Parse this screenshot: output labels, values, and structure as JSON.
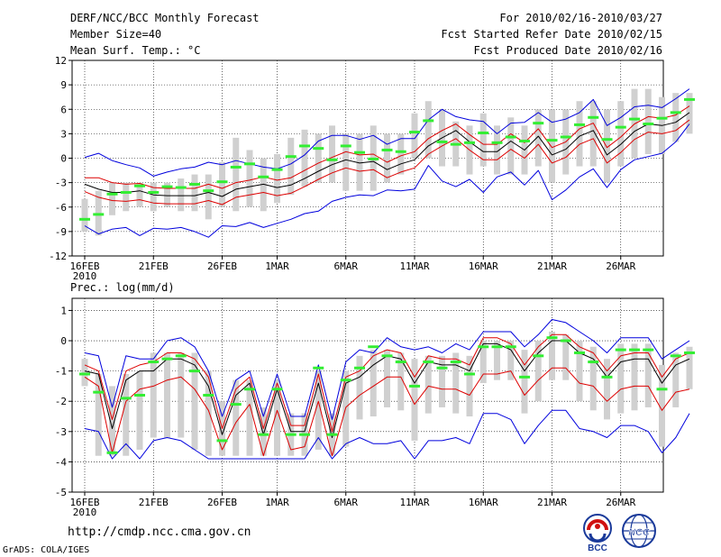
{
  "header": {
    "title": "DERF/NCC/BCC Monthly Forecast",
    "member_size": "Member Size=40",
    "variable": "Mean Surf. Temp.: °C",
    "period": "For 2010/02/16-2010/03/27",
    "refer_date": "Fcst Started Refer Date 2010/02/15",
    "produced_date": "Fcst Produced Date 2010/02/16"
  },
  "footer": {
    "url": "http://cmdp.ncc.cma.gov.cn",
    "grads_credit": "GrADS: COLA/IGES",
    "logo_bcc": "BCC",
    "logo_ncc": "NCC"
  },
  "chart_data": [
    {
      "type": "line",
      "title": "Mean Surf. Temp.: °C",
      "x_tick_labels": [
        "16FEB",
        "21FEB",
        "26FEB",
        "1MAR",
        "6MAR",
        "11MAR",
        "16MAR",
        "21MAR",
        "26MAR"
      ],
      "x_tick_days": [
        0,
        5,
        10,
        14,
        19,
        24,
        29,
        34,
        39
      ],
      "x_year_label": "2010",
      "y_ticks": [
        12,
        9,
        6,
        3,
        0,
        -3,
        -6,
        -9,
        -12
      ],
      "ylim": [
        -12,
        12
      ],
      "grid": true,
      "series": [
        {
          "name": "ensemble mean",
          "color": "#000000",
          "values": [
            -3.2,
            -3.8,
            -4.2,
            -4.2,
            -4.0,
            -4.5,
            -4.6,
            -4.6,
            -4.6,
            -4.2,
            -4.7,
            -3.8,
            -3.5,
            -3.2,
            -3.6,
            -3.3,
            -2.5,
            -1.6,
            -0.8,
            -0.2,
            -0.6,
            -0.4,
            -1.4,
            -0.7,
            -0.2,
            1.5,
            2.5,
            3.4,
            2.0,
            0.8,
            0.8,
            2.1,
            1.0,
            2.7,
            0.4,
            1.1,
            2.7,
            3.4,
            0.4,
            1.7,
            3.3,
            4.2,
            4.0,
            4.4,
            5.6
          ]
        },
        {
          "name": "upper red",
          "color": "#dd0000",
          "values": [
            -2.4,
            -2.4,
            -3.0,
            -3.2,
            -3.1,
            -3.6,
            -3.7,
            -3.7,
            -3.7,
            -3.2,
            -3.7,
            -3.0,
            -2.7,
            -2.3,
            -2.7,
            -2.4,
            -1.5,
            -0.6,
            0.1,
            0.8,
            0.4,
            0.5,
            -0.5,
            0.3,
            0.8,
            2.4,
            3.4,
            4.2,
            2.9,
            1.7,
            1.7,
            3.0,
            1.9,
            3.6,
            1.3,
            2.0,
            3.6,
            4.3,
            1.3,
            2.6,
            4.2,
            5.1,
            4.9,
            5.3,
            6.4
          ]
        },
        {
          "name": "lower red",
          "color": "#dd0000",
          "values": [
            -4.1,
            -4.8,
            -5.2,
            -5.3,
            -5.1,
            -5.5,
            -5.6,
            -5.6,
            -5.6,
            -5.2,
            -5.7,
            -4.8,
            -4.5,
            -4.2,
            -4.6,
            -4.3,
            -3.5,
            -2.6,
            -1.8,
            -1.2,
            -1.6,
            -1.4,
            -2.4,
            -1.7,
            -1.2,
            0.5,
            1.5,
            2.4,
            1.0,
            -0.2,
            -0.2,
            1.1,
            0.0,
            1.7,
            -0.6,
            0.1,
            1.7,
            2.4,
            -0.6,
            0.7,
            2.3,
            3.2,
            3.0,
            3.4,
            4.7
          ]
        },
        {
          "name": "upper blue",
          "color": "#0000dd",
          "values": [
            0.1,
            0.6,
            -0.3,
            -0.8,
            -1.2,
            -2.2,
            -1.7,
            -1.3,
            -1.1,
            -0.5,
            -0.8,
            -0.3,
            -0.7,
            -1.1,
            -1.3,
            -0.7,
            0.4,
            2.1,
            2.8,
            2.8,
            2.3,
            2.8,
            1.7,
            2.4,
            2.4,
            4.7,
            6.0,
            5.1,
            4.7,
            4.5,
            3.0,
            4.3,
            4.4,
            5.6,
            4.4,
            4.8,
            5.6,
            7.2,
            4.0,
            5.0,
            6.3,
            6.5,
            6.2,
            7.3,
            8.5
          ]
        },
        {
          "name": "lower blue",
          "color": "#0000dd",
          "values": [
            -8.3,
            -9.3,
            -8.7,
            -8.5,
            -9.5,
            -8.6,
            -8.7,
            -8.5,
            -9.0,
            -9.7,
            -8.3,
            -8.4,
            -7.9,
            -8.5,
            -8.0,
            -7.5,
            -6.8,
            -6.5,
            -5.3,
            -4.8,
            -4.5,
            -4.6,
            -3.9,
            -4.0,
            -3.8,
            -0.9,
            -2.8,
            -3.5,
            -2.6,
            -4.2,
            -2.3,
            -1.7,
            -3.3,
            -1.5,
            -5.1,
            -3.9,
            -2.3,
            -1.3,
            -3.6,
            -1.4,
            -0.2,
            0.2,
            0.6,
            2.0,
            4.2
          ]
        },
        {
          "name": "green member marks",
          "color": "#33ee33",
          "values": [
            -7.5,
            -6.9,
            -4.4,
            -4.2,
            -3.4,
            -4.2,
            -3.5,
            -3.6,
            -3.2,
            -4.0,
            -2.9,
            -1.1,
            -0.7,
            -2.3,
            -1.4,
            0.2,
            1.5,
            1.2,
            -0.2,
            1.5,
            0.7,
            -0.1,
            1.0,
            0.8,
            3.2,
            4.6,
            2.0,
            1.7,
            1.9,
            3.1,
            1.9,
            2.6,
            2.1,
            4.3,
            2.2,
            2.6,
            4.1,
            5.0,
            2.3,
            3.8,
            4.8,
            4.2,
            4.9,
            5.6,
            7.2
          ]
        }
      ],
      "boxes": [
        [
          -9,
          -5
        ],
        [
          -9.5,
          -4
        ],
        [
          -7,
          -3
        ],
        [
          -6.5,
          -3
        ],
        [
          -6,
          -3
        ],
        [
          -6.5,
          -3
        ],
        [
          -6,
          -3
        ],
        [
          -6.5,
          -2.5
        ],
        [
          -6.5,
          -2
        ],
        [
          -7.5,
          -2
        ],
        [
          -6,
          -0.5
        ],
        [
          -6.5,
          2.5
        ],
        [
          -6,
          1
        ],
        [
          -6.5,
          0
        ],
        [
          -5.5,
          0.5
        ],
        [
          -4.5,
          2.5
        ],
        [
          -3.5,
          3.5
        ],
        [
          -3,
          3
        ],
        [
          -3,
          4
        ],
        [
          -4,
          3
        ],
        [
          -4,
          3
        ],
        [
          -4,
          4
        ],
        [
          -3,
          3
        ],
        [
          -2,
          3
        ],
        [
          0,
          5.5
        ],
        [
          0,
          7
        ],
        [
          -1,
          6
        ],
        [
          -1,
          4.5
        ],
        [
          -2,
          4
        ],
        [
          -1,
          5.5
        ],
        [
          -2,
          4
        ],
        [
          -2,
          5
        ],
        [
          -2,
          4
        ],
        [
          -1,
          6
        ],
        [
          -3,
          6
        ],
        [
          -2,
          6
        ],
        [
          -1,
          7
        ],
        [
          -1,
          7
        ],
        [
          -3,
          6
        ],
        [
          -1,
          7
        ],
        [
          0,
          8.5
        ],
        [
          0.5,
          8.5
        ],
        [
          0.5,
          7.5
        ],
        [
          2,
          8
        ],
        [
          3,
          8
        ]
      ]
    },
    {
      "type": "line",
      "title": "Prec.: log(mm/d)",
      "x_tick_labels": [
        "16FEB",
        "21FEB",
        "26FEB",
        "1MAR",
        "6MAR",
        "11MAR",
        "16MAR",
        "21MAR",
        "26MAR"
      ],
      "x_tick_days": [
        0,
        5,
        10,
        14,
        19,
        24,
        29,
        34,
        39
      ],
      "x_year_label": "2010",
      "y_ticks": [
        1,
        0,
        -1,
        -2,
        -3,
        -4,
        -5
      ],
      "ylim": [
        -5,
        1.4
      ],
      "grid": true,
      "series": [
        {
          "name": "ensemble mean",
          "color": "#000000",
          "values": [
            -1.0,
            -1.1,
            -2.9,
            -1.3,
            -1.0,
            -1.0,
            -0.6,
            -0.6,
            -0.8,
            -1.5,
            -3.1,
            -1.8,
            -1.4,
            -3.1,
            -1.6,
            -3.0,
            -3.0,
            -1.4,
            -3.2,
            -1.4,
            -1.2,
            -0.8,
            -0.5,
            -0.6,
            -1.4,
            -0.7,
            -0.8,
            -0.8,
            -1.0,
            -0.1,
            -0.1,
            -0.3,
            -1.0,
            -0.4,
            0.0,
            0.0,
            -0.4,
            -0.6,
            -1.2,
            -0.7,
            -0.6,
            -0.6,
            -1.4,
            -0.8,
            -0.6
          ]
        },
        {
          "name": "upper red",
          "color": "#dd0000",
          "values": [
            -0.8,
            -1.0,
            -2.6,
            -1.0,
            -0.8,
            -0.7,
            -0.4,
            -0.4,
            -0.6,
            -1.2,
            -2.9,
            -1.6,
            -1.2,
            -2.9,
            -1.4,
            -2.8,
            -2.8,
            -1.1,
            -3.0,
            -1.2,
            -1.0,
            -0.5,
            -0.3,
            -0.4,
            -1.2,
            -0.5,
            -0.6,
            -0.6,
            -0.8,
            0.1,
            0.1,
            -0.1,
            -0.8,
            -0.2,
            0.2,
            0.2,
            -0.2,
            -0.4,
            -1.0,
            -0.5,
            -0.4,
            -0.4,
            -1.2,
            -0.6,
            -0.4
          ]
        },
        {
          "name": "lower red",
          "color": "#dd0000",
          "values": [
            -1.2,
            -1.5,
            -3.7,
            -2.0,
            -1.6,
            -1.5,
            -1.3,
            -1.2,
            -1.6,
            -2.3,
            -3.6,
            -2.7,
            -2.1,
            -3.8,
            -2.3,
            -3.6,
            -3.5,
            -2.0,
            -3.8,
            -2.2,
            -1.8,
            -1.5,
            -1.2,
            -1.2,
            -2.1,
            -1.5,
            -1.6,
            -1.6,
            -1.8,
            -1.1,
            -1.1,
            -1.0,
            -1.8,
            -1.3,
            -0.9,
            -0.9,
            -1.4,
            -1.5,
            -2.0,
            -1.6,
            -1.5,
            -1.5,
            -2.3,
            -1.7,
            -1.6
          ]
        },
        {
          "name": "upper blue",
          "color": "#0000dd",
          "values": [
            -0.4,
            -0.5,
            -2.2,
            -0.5,
            -0.6,
            -0.6,
            0.0,
            0.1,
            -0.2,
            -1.0,
            -2.5,
            -1.3,
            -1.0,
            -2.5,
            -1.1,
            -2.5,
            -2.5,
            -0.8,
            -2.6,
            -0.7,
            -0.3,
            -0.4,
            0.1,
            -0.2,
            -0.3,
            -0.2,
            -0.4,
            -0.1,
            -0.3,
            0.3,
            0.3,
            0.3,
            -0.2,
            0.2,
            0.7,
            0.6,
            0.3,
            0.0,
            -0.4,
            0.1,
            0.1,
            0.1,
            -0.6,
            -0.3,
            0.0
          ]
        },
        {
          "name": "lower blue",
          "color": "#0000dd",
          "values": [
            -2.9,
            -3.0,
            -3.9,
            -3.4,
            -3.9,
            -3.3,
            -3.2,
            -3.3,
            -3.6,
            -3.9,
            -3.9,
            -3.9,
            -3.9,
            -3.9,
            -3.9,
            -3.9,
            -3.9,
            -3.2,
            -3.9,
            -3.4,
            -3.2,
            -3.4,
            -3.4,
            -3.3,
            -3.9,
            -3.3,
            -3.3,
            -3.2,
            -3.4,
            -2.4,
            -2.4,
            -2.6,
            -3.4,
            -2.8,
            -2.3,
            -2.3,
            -2.9,
            -3.0,
            -3.2,
            -2.8,
            -2.8,
            -3.0,
            -3.7,
            -3.2,
            -2.4
          ]
        },
        {
          "name": "green member marks",
          "color": "#33ee33",
          "values": [
            -1.1,
            -1.7,
            -3.7,
            -1.9,
            -1.8,
            -0.7,
            -0.6,
            -0.5,
            -1.0,
            -1.8,
            -3.3,
            -2.1,
            -1.6,
            -3.1,
            -1.6,
            -3.1,
            -3.1,
            -0.9,
            -3.1,
            -1.3,
            -0.9,
            -0.2,
            -0.5,
            -0.7,
            -1.5,
            -0.7,
            -0.9,
            -0.7,
            -1.1,
            -0.2,
            -0.2,
            -0.2,
            -1.2,
            -0.5,
            0.1,
            0.0,
            -0.4,
            -0.7,
            -1.2,
            -0.3,
            -0.3,
            -0.3,
            -1.6,
            -0.5,
            -0.4
          ]
        }
      ],
      "boxes": [
        [
          -1.5,
          -0.6
        ],
        [
          -3.8,
          -1.1
        ],
        [
          -3.8,
          -1.5
        ],
        [
          -3.8,
          -1.1
        ],
        [
          -3.6,
          -1.0
        ],
        [
          -3.2,
          -0.4
        ],
        [
          -3.2,
          -0.4
        ],
        [
          -3.2,
          -0.4
        ],
        [
          -3.6,
          -0.4
        ],
        [
          -3.8,
          -1.0
        ],
        [
          -3.8,
          -2.0
        ],
        [
          -3.8,
          -1.3
        ],
        [
          -3.8,
          -1.3
        ],
        [
          -3.8,
          -2.2
        ],
        [
          -3.8,
          -1.3
        ],
        [
          -3.8,
          -2.4
        ],
        [
          -3.8,
          -2.4
        ],
        [
          -3.6,
          -1.0
        ],
        [
          -3.8,
          -2.4
        ],
        [
          -3.5,
          -1.0
        ],
        [
          -2.6,
          -0.5
        ],
        [
          -2.5,
          -0.3
        ],
        [
          -2.2,
          -0.3
        ],
        [
          -2.3,
          -0.4
        ],
        [
          -3.3,
          -0.6
        ],
        [
          -2.4,
          -0.5
        ],
        [
          -2.2,
          -0.5
        ],
        [
          -2.4,
          -0.4
        ],
        [
          -2.5,
          -0.5
        ],
        [
          -1.4,
          0.0
        ],
        [
          -1.3,
          0.0
        ],
        [
          -1.3,
          0.0
        ],
        [
          -2.4,
          -0.3
        ],
        [
          -2.0,
          0.0
        ],
        [
          -1.3,
          0.3
        ],
        [
          -1.3,
          0.2
        ],
        [
          -2.0,
          0.0
        ],
        [
          -2.3,
          -0.2
        ],
        [
          -2.6,
          -0.6
        ],
        [
          -2.4,
          -0.1
        ],
        [
          -2.3,
          -0.1
        ],
        [
          -2.2,
          -0.1
        ],
        [
          -3.5,
          -0.8
        ],
        [
          -2.2,
          -0.4
        ],
        [
          -1.6,
          -0.2
        ]
      ]
    }
  ]
}
